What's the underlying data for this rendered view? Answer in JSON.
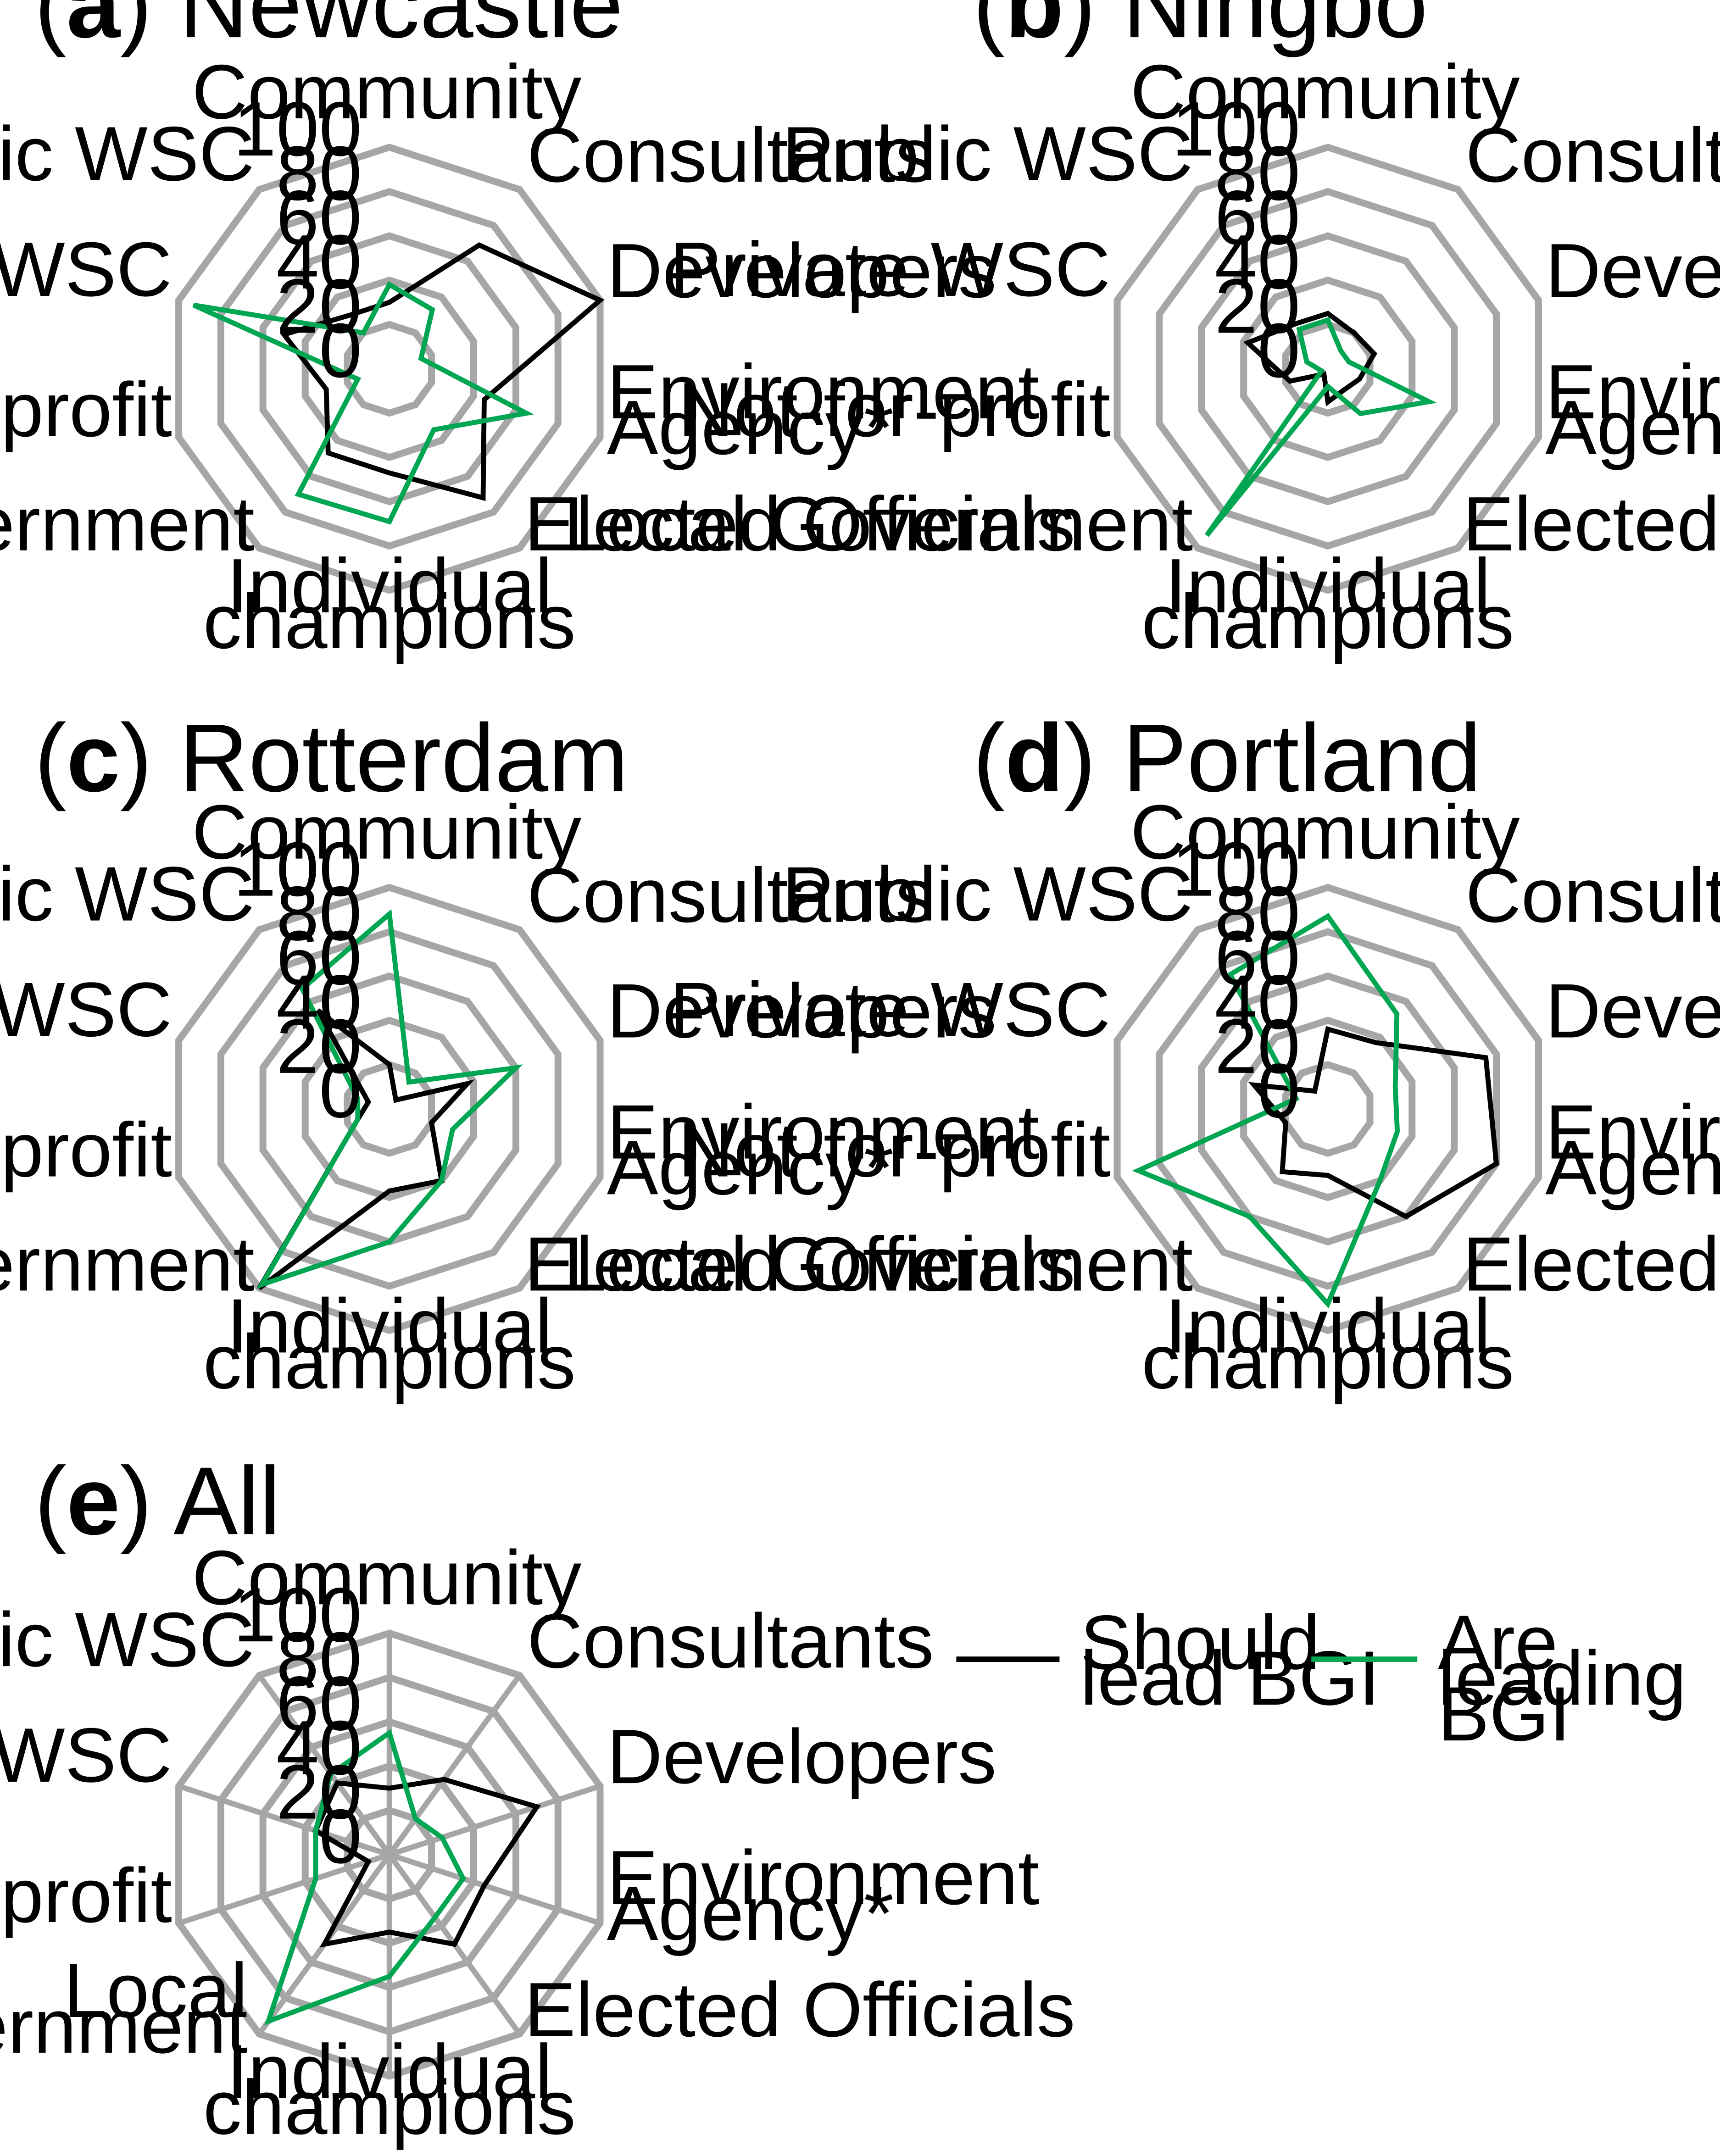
{
  "figure": {
    "legend": [
      {
        "label_lines": [
          "Should",
          "lead BGI"
        ],
        "color": "#000000"
      },
      {
        "label_lines": [
          "Are",
          "leading",
          "BGI"
        ],
        "color": "#00a651"
      }
    ]
  },
  "chart_data": [
    {
      "type": "radar",
      "panel_letter": "a",
      "title": "Newcastle",
      "axes": [
        "Community",
        "Consultants",
        "Developers",
        "Environment Agency*",
        "Elected Officials",
        "Individual champions",
        "Local Government",
        "Not-for-profit",
        "Private WSC",
        "Public WSC"
      ],
      "axis_label_lines": [
        [
          "Community"
        ],
        [
          "Consultants"
        ],
        [
          "Developers"
        ],
        [
          "Environment",
          "Agency*"
        ],
        [
          "Elected Officials"
        ],
        [
          "Individual",
          "champions"
        ],
        [
          "Local Government"
        ],
        [
          "Not-for-profit"
        ],
        [
          "Private WSC"
        ],
        [
          "Public WSC"
        ]
      ],
      "ticks": [
        0,
        20,
        40,
        60,
        80,
        100
      ],
      "rlim": [
        0,
        100
      ],
      "series": [
        {
          "name": "Should lead BGI",
          "color": "#000000",
          "values": [
            30,
            69,
            100,
            45,
            72,
            47,
            47,
            30,
            50,
            30
          ]
        },
        {
          "name": "Are leading BGI",
          "color": "#00a651",
          "values": [
            38,
            33,
            15,
            65,
            34,
            69,
            70,
            15,
            93,
            20
          ]
        }
      ]
    },
    {
      "type": "radar",
      "panel_letter": "b",
      "title": "Ningbo",
      "axes": [
        "Community",
        "Consultants",
        "Developers",
        "Environment Agency*",
        "Elected Officials",
        "Individual champions",
        "Local Government",
        "Not-for-profit",
        "Private WSC",
        "Public WSC"
      ],
      "axis_label_lines": [
        [
          "Community"
        ],
        [
          "Consultants"
        ],
        [
          "Developers"
        ],
        [
          "Environment",
          "Agency*"
        ],
        [
          "Elected Officials"
        ],
        [
          "Individual",
          "champions"
        ],
        [
          "Local Government"
        ],
        [
          "Not-for-profit"
        ],
        [
          "Private WSC"
        ],
        [
          "Public WSC"
        ]
      ],
      "ticks": [
        0,
        20,
        40,
        60,
        80,
        100
      ],
      "rlim": [
        0,
        100
      ],
      "series": [
        {
          "name": "Should lead BGI",
          "color": "#000000",
          "values": [
            25,
            20,
            22,
            15,
            12,
            15,
            3,
            18,
            38,
            25
          ]
        },
        {
          "name": "Are leading BGI",
          "color": "#00a651",
          "values": [
            22,
            10,
            10,
            48,
            25,
            8,
            93,
            3,
            10,
            22
          ]
        }
      ]
    },
    {
      "type": "radar",
      "panel_letter": "c",
      "title": "Rotterdam",
      "axes": [
        "Community",
        "Consultants",
        "Developers",
        "Environment Agency*",
        "Elected Officials",
        "Individual champions",
        "Local Government",
        "Not-for-profit",
        "Private WSC",
        "Public WSC"
      ],
      "axis_label_lines": [
        [
          "Community"
        ],
        [
          "Consultants"
        ],
        [
          "Developers"
        ],
        [
          "Environment",
          "Agency*"
        ],
        [
          "Elected Officials"
        ],
        [
          "Individual",
          "champions"
        ],
        [
          "Local Government"
        ],
        [
          "Not-for-profit"
        ],
        [
          "Private WSC"
        ],
        [
          "Public WSC"
        ]
      ],
      "ticks": [
        0,
        20,
        40,
        60,
        80,
        100
      ],
      "rlim": [
        0,
        100
      ],
      "series": [
        {
          "name": "Should lead BGI",
          "color": "#000000",
          "values": [
            20,
            5,
            37,
            20,
            40,
            37,
            100,
            15,
            10,
            55
          ]
        },
        {
          "name": "Are leading BGI",
          "color": "#00a651",
          "values": [
            88,
            15,
            60,
            30,
            40,
            60,
            98,
            15,
            15,
            67
          ]
        }
      ]
    },
    {
      "type": "radar",
      "panel_letter": "d",
      "title": "Portland",
      "axes": [
        "Community",
        "Consultants",
        "Developers",
        "Environment Agency*",
        "Elected Officials",
        "Individual champions",
        "Local Government",
        "Not-for-profit",
        "Private WSC",
        "Public WSC"
      ],
      "axis_label_lines": [
        [
          "Community"
        ],
        [
          "Consultants"
        ],
        [
          "Developers"
        ],
        [
          "Environment",
          "Agency*"
        ],
        [
          "Elected Officials"
        ],
        [
          "Individual",
          "champions"
        ],
        [
          "Local Government"
        ],
        [
          "Not-for-profit"
        ],
        [
          "Private WSC"
        ],
        [
          "Public WSC"
        ]
      ],
      "ticks": [
        0,
        20,
        40,
        60,
        80,
        100
      ],
      "rlim": [
        0,
        100
      ],
      "series": [
        {
          "name": "Should lead BGI",
          "color": "#000000",
          "values": [
            36,
            37,
            75,
            80,
            60,
            30,
            35,
            20,
            35,
            10
          ]
        },
        {
          "name": "Are leading BGI",
          "color": "#00a651",
          "values": [
            87,
            53,
            32,
            33,
            40,
            88,
            60,
            90,
            15,
            75
          ]
        }
      ]
    },
    {
      "type": "radar",
      "panel_letter": "e",
      "title": "All",
      "axes": [
        "Community",
        "Consultants",
        "Developers",
        "Environment Agency*",
        "Elected Officials",
        "Individual champions",
        "Local Government",
        "Not-for-profit",
        "Private WSC",
        "Public WSC"
      ],
      "axis_label_lines": [
        [
          "Community"
        ],
        [
          "Consultants"
        ],
        [
          "Developers"
        ],
        [
          "Environment",
          "Agency*"
        ],
        [
          "Elected Officials"
        ],
        [
          "Individual",
          "champions"
        ],
        [
          "Local Government"
        ],
        [
          "Not-for-profit"
        ],
        [
          "Private WSC"
        ],
        [
          "Public WSC"
        ]
      ],
      "ticks": [
        0,
        20,
        40,
        60,
        80,
        100
      ],
      "rlim": [
        0,
        100
      ],
      "series": [
        {
          "name": "Should lead BGI",
          "color": "#000000",
          "values": [
            30,
            42,
            70,
            45,
            50,
            35,
            50,
            10,
            35,
            40
          ]
        },
        {
          "name": "Are leading BGI",
          "color": "#00a651",
          "values": [
            55,
            20,
            25,
            35,
            35,
            55,
            93,
            35,
            35,
            45
          ]
        }
      ]
    }
  ]
}
